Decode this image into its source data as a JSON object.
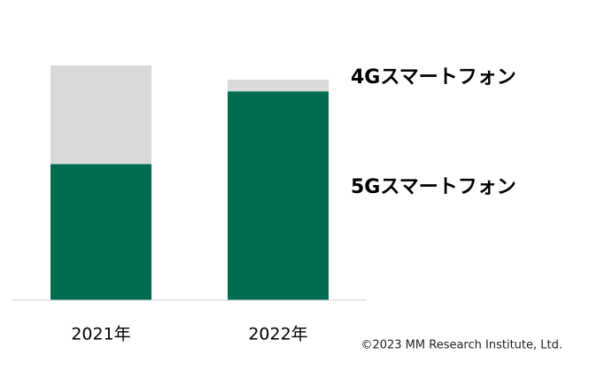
{
  "chart_data": {
    "type": "stacked_bar",
    "categories": [
      "2021年",
      "2022年"
    ],
    "series": [
      {
        "name": "5Gスマートフォン",
        "color": "#006c4f",
        "values": [
          58,
          89
        ]
      },
      {
        "name": "4Gスマートフォン",
        "color": "#d9d9d9",
        "values": [
          42,
          5
        ]
      }
    ],
    "source": "©2023 MM Research Institute, Ltd."
  }
}
